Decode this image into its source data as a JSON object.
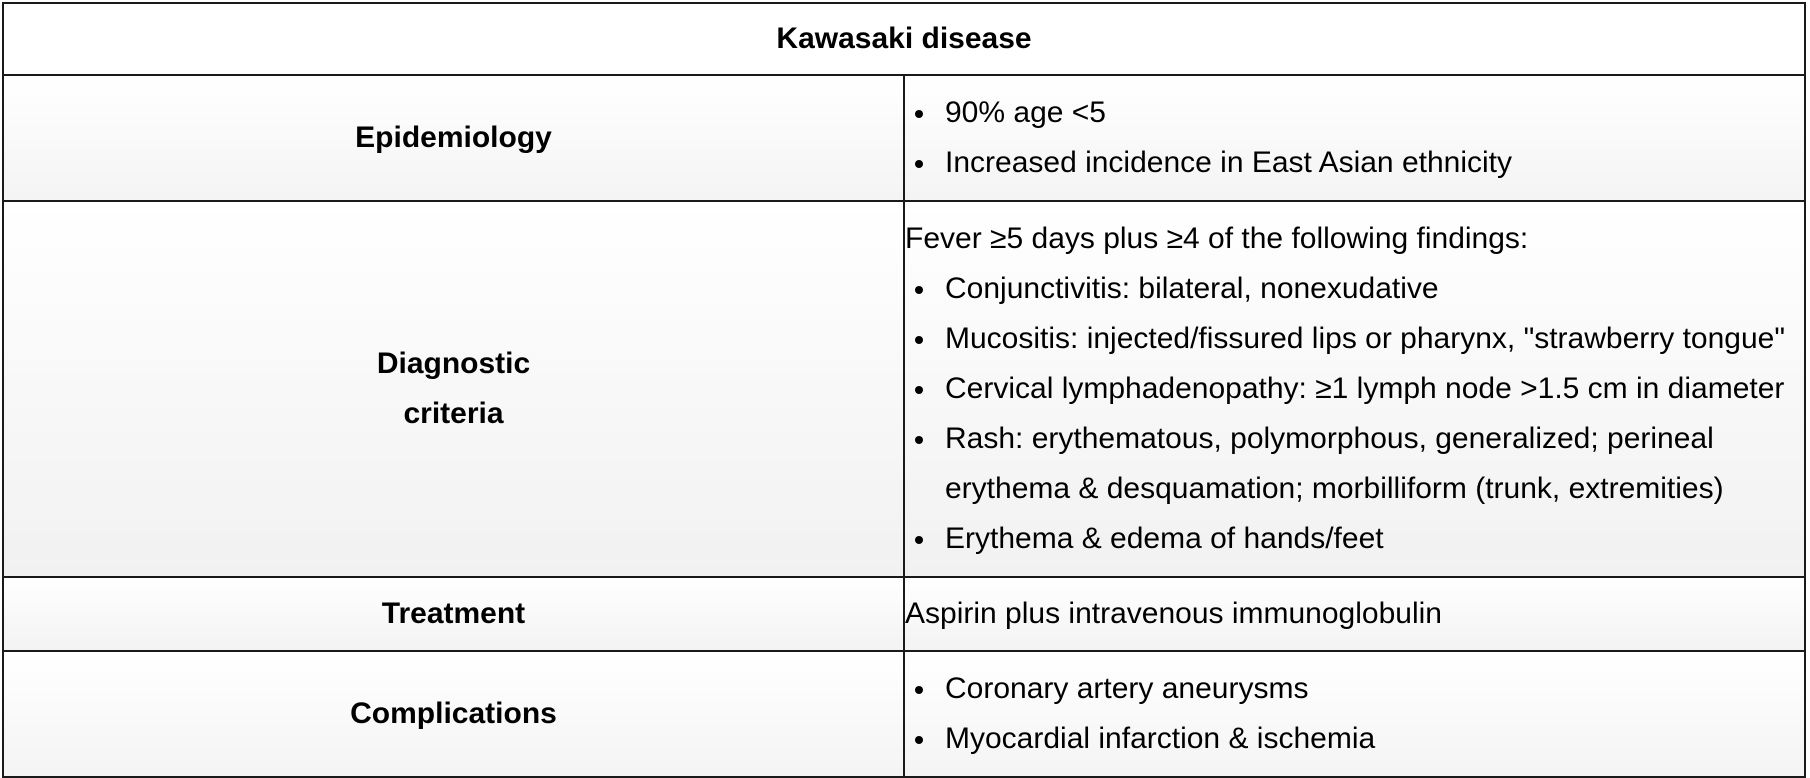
{
  "title": "Kawasaki disease",
  "rows": {
    "epidemiology": {
      "label": "Epidemiology",
      "items": [
        "90% age <5",
        "Increased incidence in East Asian ethnicity"
      ]
    },
    "diagnostic": {
      "label_line1": "Diagnostic",
      "label_line2": "criteria",
      "intro": "Fever ≥5 days plus ≥4 of the following findings:",
      "items": [
        "Conjunctivitis: bilateral, nonexudative",
        "Mucositis: injected/fissured lips or pharynx, \"strawberry tongue\"",
        "Cervical lymphadenopathy: ≥1 lymph node >1.5 cm in diameter",
        "Rash: erythematous, polymorphous, generalized; perineal erythema & desquamation; morbilliform (trunk, extremities)",
        "Erythema & edema of hands/feet"
      ]
    },
    "treatment": {
      "label": "Treatment",
      "text": "Aspirin plus intravenous immunoglobulin"
    },
    "complications": {
      "label": "Complications",
      "items": [
        "Coronary artery aneurysms",
        "Myocardial infarction & ischemia"
      ]
    }
  }
}
